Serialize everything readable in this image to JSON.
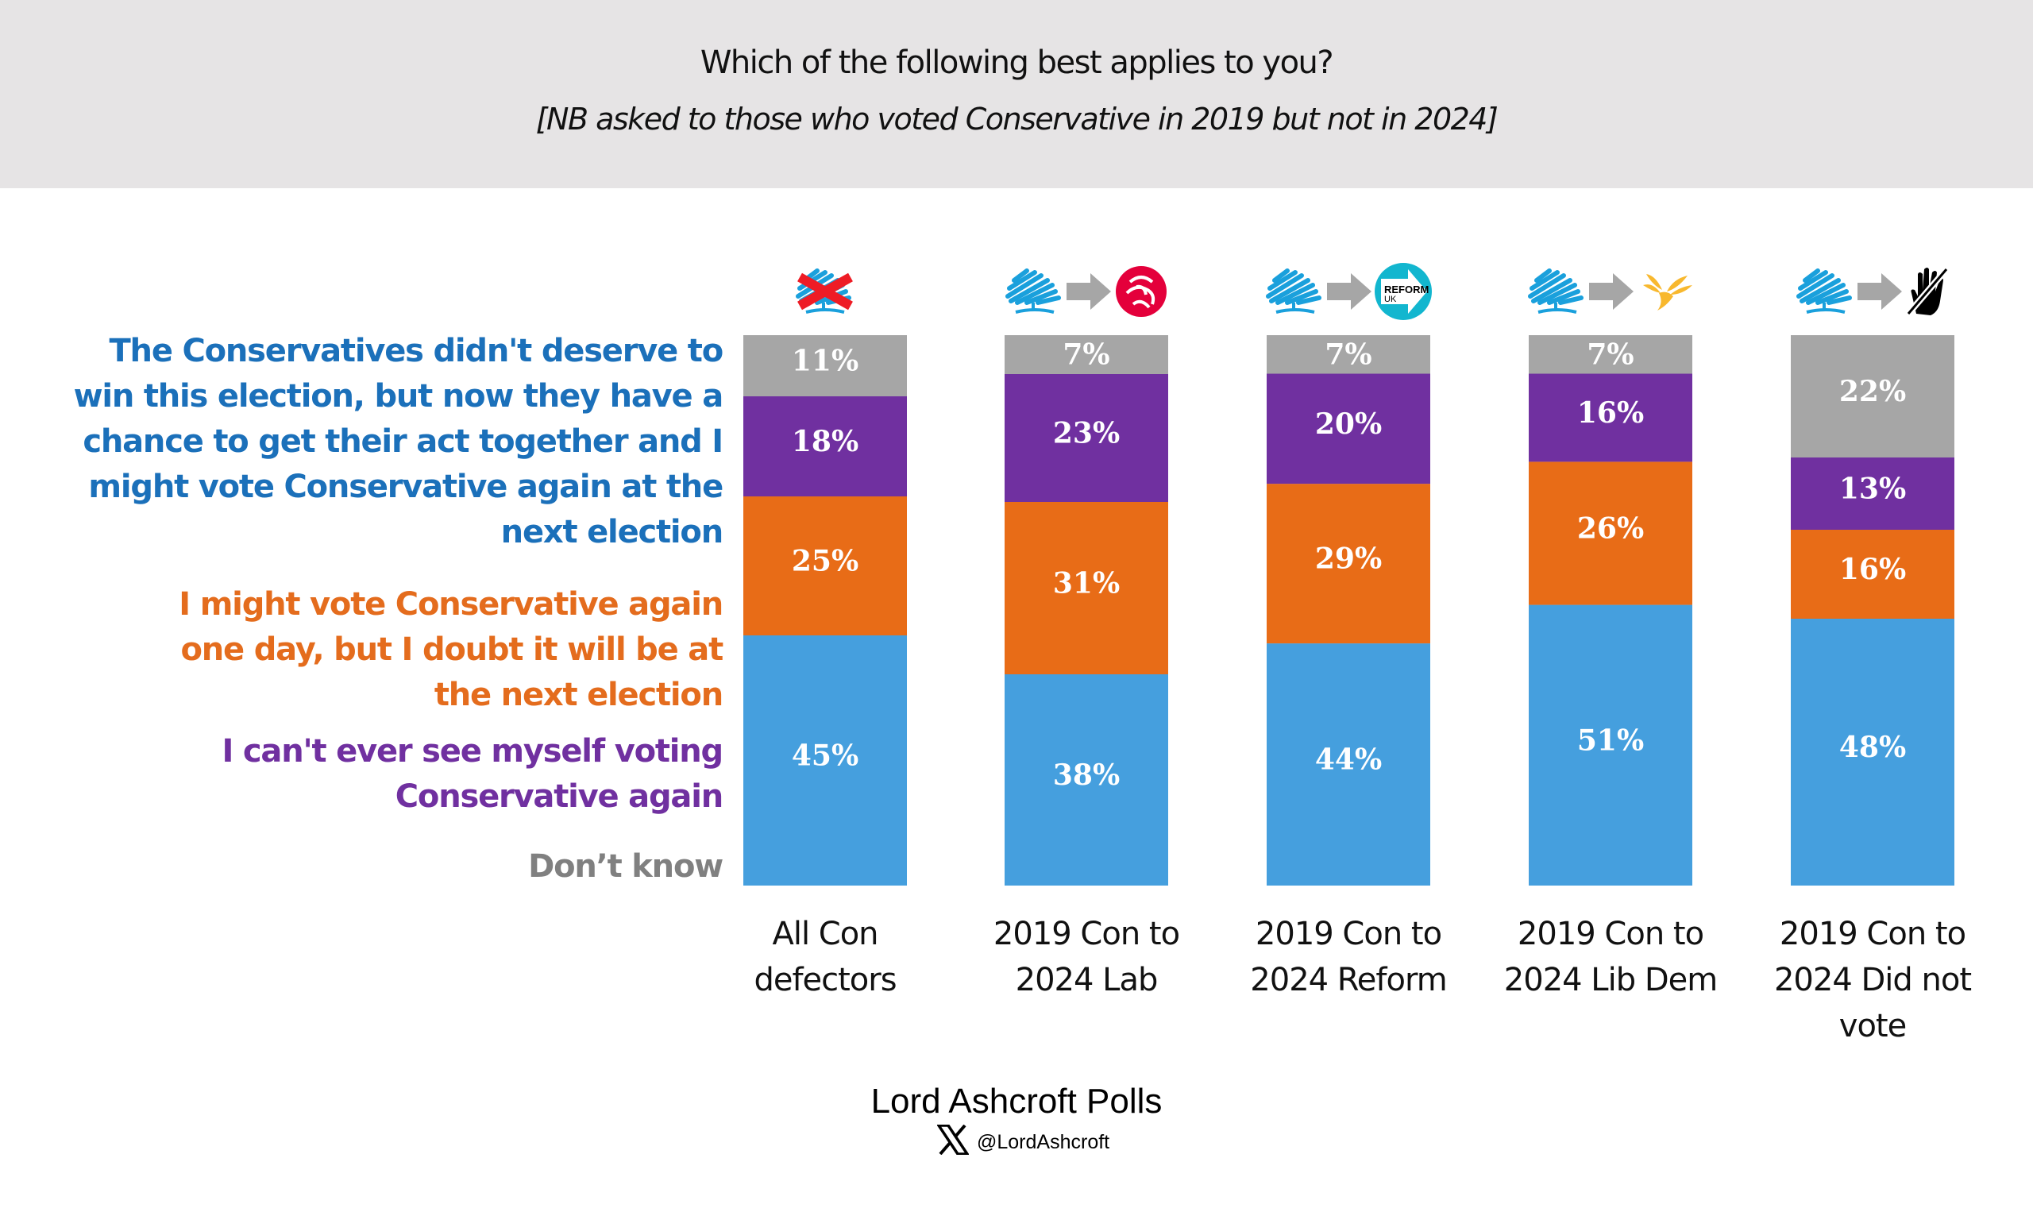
{
  "header": {
    "title": "Which of the following best applies to you?",
    "subtitle": "[NB asked to those who voted Conservative in 2019 but not in 2024]"
  },
  "chart_data": {
    "type": "bar",
    "stacked": true,
    "orientation": "vertical",
    "title": "Which of the following best applies to you?",
    "subtitle": "[NB asked to those who voted Conservative in 2019 but not in 2024]",
    "xlabel": "",
    "ylabel": "",
    "ylim": [
      0,
      100
    ],
    "grid": false,
    "legend_position": "left",
    "categories": [
      "All Con defectors",
      "2019 Con to 2024 Lab",
      "2019 Con to 2024 Reform",
      "2019 Con to 2024 Lib Dem",
      "2019 Con to 2024 Did not vote"
    ],
    "category_lines": [
      [
        "All Con",
        "defectors"
      ],
      [
        "2019 Con to",
        "2024 Lab"
      ],
      [
        "2019 Con to",
        "2024 Reform"
      ],
      [
        "2019 Con to",
        "2024 Lib Dem"
      ],
      [
        "2019 Con to",
        "2024 Did not",
        "vote"
      ]
    ],
    "category_icons": [
      [
        "conservative-tree-crossed-icon"
      ],
      [
        "conservative-tree-icon",
        "arrow-right-icon",
        "labour-rose-icon"
      ],
      [
        "conservative-tree-icon",
        "arrow-right-icon",
        "reform-uk-icon"
      ],
      [
        "conservative-tree-icon",
        "arrow-right-icon",
        "lib-dem-bird-icon"
      ],
      [
        "conservative-tree-icon",
        "arrow-right-icon",
        "did-not-vote-hand-icon"
      ]
    ],
    "series": [
      {
        "name": "The Conservatives didn't deserve to win this election, but now they have a chance to get their act together and I might vote Conservative again at the next election",
        "legend_lines": [
          "The Conservatives didn't deserve to",
          "win this election, but now they have a",
          "chance to get their act together and I",
          "might vote Conservative again at the",
          "next election"
        ],
        "color": "#459fde",
        "text_color": "#1b70ba",
        "values": [
          45,
          38,
          44,
          51,
          48
        ]
      },
      {
        "name": "I might vote Conservative again one day, but I doubt it will be at the next election",
        "legend_lines": [
          "I might vote Conservative again",
          "one day, but I doubt it will be at",
          "the next election"
        ],
        "color": "#e86c17",
        "text_color": "#e46c1d",
        "values": [
          25,
          31,
          29,
          26,
          16
        ]
      },
      {
        "name": "I can't ever see myself voting Conservative again",
        "legend_lines": [
          "I can't ever see myself voting",
          "Conservative again"
        ],
        "color": "#7030a0",
        "text_color": "#7030a0",
        "values": [
          18,
          23,
          20,
          16,
          13
        ]
      },
      {
        "name": "Don’t know",
        "legend_lines": [
          "Don’t know"
        ],
        "color": "#a6a6a6",
        "text_color": "#808080",
        "values": [
          11,
          7,
          7,
          7,
          22
        ]
      }
    ],
    "value_suffix": "%"
  },
  "footer": {
    "brand": "Lord Ashcroft Polls",
    "social_icon": "x-logo-icon",
    "handle": "@LordAshcroft"
  }
}
